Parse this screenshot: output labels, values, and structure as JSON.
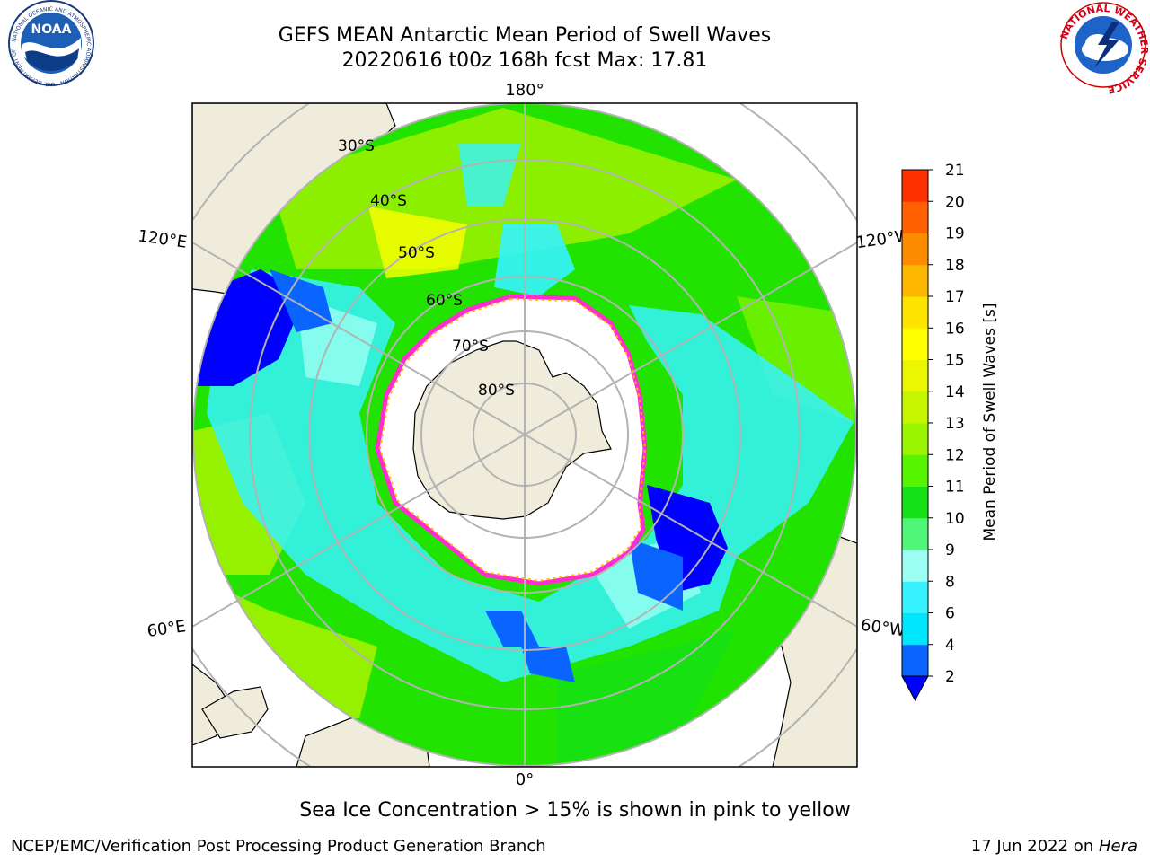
{
  "header": {
    "title_line1": "GEFS MEAN Antarctic Mean Period of Swell Waves",
    "title_line2": "20220616 t00z 168h fcst   Max: 17.81"
  },
  "logos": {
    "left": {
      "text": "NOAA",
      "ring_text": "NATIONAL OCEANIC AND ATMOSPHERIC ADMINISTRATION · U.S. DEPARTMENT OF COMMERCE"
    },
    "right": {
      "ring_text": "NATIONAL WEATHER SERVICE"
    }
  },
  "map": {
    "projection": "south-polar-stereographic",
    "lon_labels": {
      "top": "180°",
      "bottom": "0°",
      "upper_left": "120°E",
      "upper_right": "120°W",
      "lower_left": "60°E",
      "lower_right": "60°W"
    },
    "lat_labels": [
      "30°S",
      "40°S",
      "50°S",
      "60°S",
      "70°S",
      "80°S"
    ],
    "colors": {
      "land": "#efecdc",
      "ocean_default": "#22e300",
      "ice": "#ffffff",
      "ice_edge": "#ff2dd0",
      "grid": "#b3b3b3",
      "coast": "#000000"
    }
  },
  "colorbar": {
    "label": "Mean Period of Swell Waves [s]",
    "ticks": [
      "2",
      "4",
      "6",
      "8",
      "9",
      "10",
      "11",
      "12",
      "13",
      "14",
      "15",
      "16",
      "17",
      "18",
      "19",
      "20",
      "21"
    ],
    "colors": [
      "#0a64ff",
      "#00e6ff",
      "#36f2ff",
      "#9bfff4",
      "#4ff779",
      "#16e016",
      "#55f500",
      "#99f600",
      "#c6f600",
      "#eaf700",
      "#ffff00",
      "#ffe400",
      "#ffb800",
      "#ff8c00",
      "#ff6000",
      "#ff3000",
      "#ff0000"
    ],
    "extend_min_color": "#0000ff"
  },
  "caption": "Sea Ice Concentration > 15% is shown in pink to yellow",
  "footer": {
    "left": "NCEP/EMC/Verification Post Processing Product Generation Branch",
    "right_date": "17 Jun 2022 on ",
    "right_host": "Hera"
  }
}
